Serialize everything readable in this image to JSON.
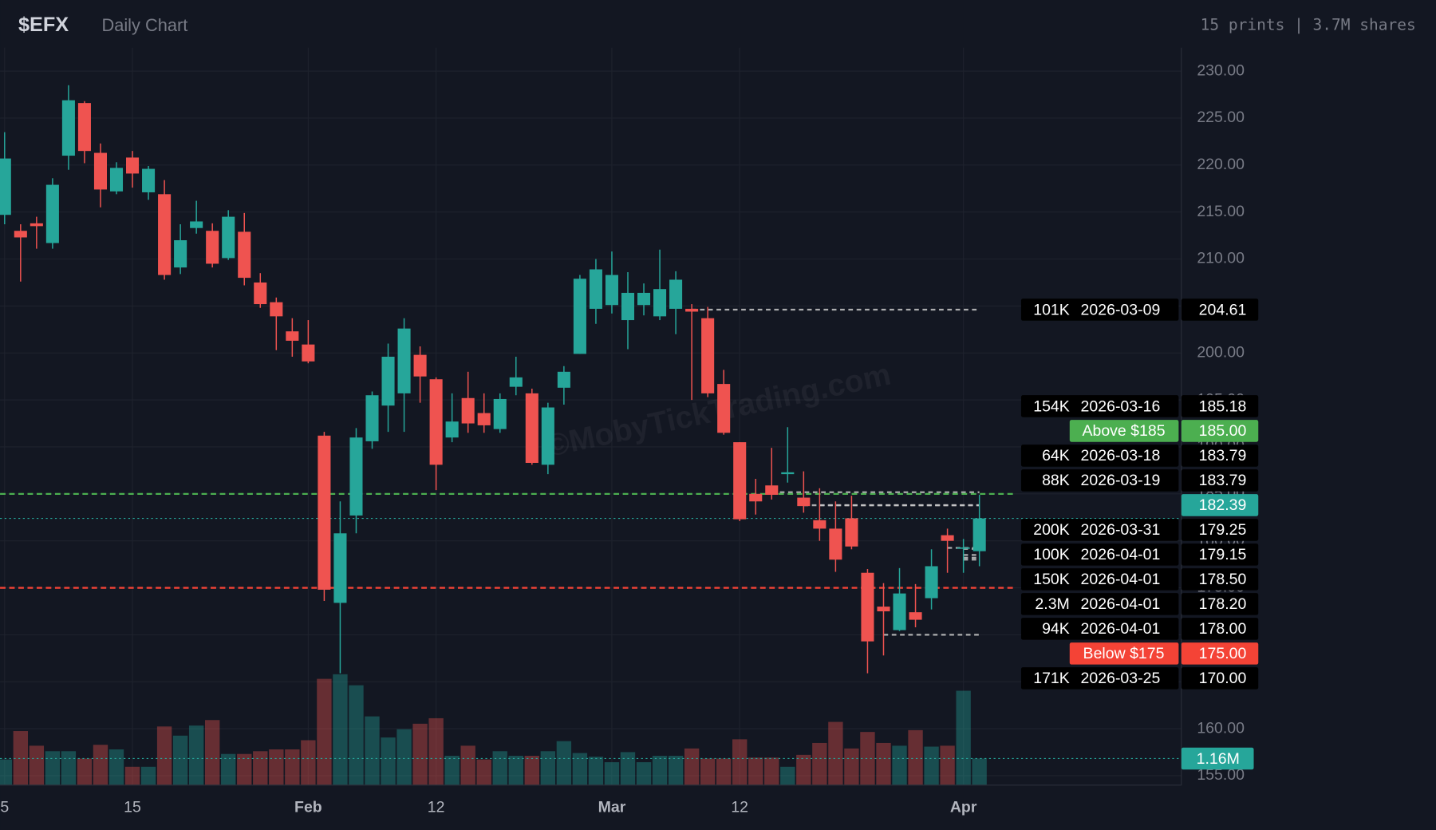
{
  "chart_data": {
    "type": "candlestick",
    "title": "$EFX",
    "subtitle": "Daily Chart",
    "summary": "15 prints | 3.7M shares",
    "watermark": "©MobyTickTrading.com",
    "x": [
      "2026-01-05",
      "2026-01-06",
      "2026-01-07",
      "2026-01-08",
      "2026-01-09",
      "2026-01-12",
      "2026-01-13",
      "2026-01-14",
      "2026-01-15",
      "2026-01-16",
      "2026-01-20",
      "2026-01-21",
      "2026-01-22",
      "2026-01-23",
      "2026-01-26",
      "2026-01-27",
      "2026-01-28",
      "2026-01-29",
      "2026-01-30",
      "2026-02-02",
      "2026-02-03",
      "2026-02-04",
      "2026-02-05",
      "2026-02-06",
      "2026-02-09",
      "2026-02-10",
      "2026-02-11",
      "2026-02-12",
      "2026-02-13",
      "2026-02-17",
      "2026-02-18",
      "2026-02-19",
      "2026-02-20",
      "2026-02-23",
      "2026-02-24",
      "2026-02-25",
      "2026-02-26",
      "2026-02-27",
      "2026-03-02",
      "2026-03-03",
      "2026-03-04",
      "2026-03-05",
      "2026-03-06",
      "2026-03-09",
      "2026-03-10",
      "2026-03-11",
      "2026-03-12",
      "2026-03-13",
      "2026-03-16",
      "2026-03-17",
      "2026-03-18",
      "2026-03-19",
      "2026-03-20",
      "2026-03-23",
      "2026-03-24",
      "2026-03-25",
      "2026-03-26",
      "2026-03-27",
      "2026-03-30",
      "2026-03-31",
      "2026-04-01",
      "2026-04-02"
    ],
    "open": [
      214.7,
      213.0,
      213.8,
      211.7,
      221.0,
      226.6,
      221.3,
      217.2,
      220.8,
      217.1,
      216.9,
      209.1,
      213.3,
      213.0,
      210.1,
      212.9,
      207.5,
      205.4,
      202.3,
      200.9,
      191.2,
      173.4,
      182.7,
      190.6,
      194.4,
      195.7,
      199.8,
      197.2,
      191.0,
      195.2,
      193.6,
      191.9,
      196.4,
      195.7,
      188.1,
      196.3,
      199.9,
      204.7,
      205.1,
      203.5,
      205.1,
      203.9,
      204.7,
      204.7,
      203.7,
      196.7,
      190.5,
      185.0,
      185.9,
      187.1,
      184.6,
      182.2,
      181.3,
      182.4,
      176.6,
      173.0,
      170.5,
      172.4,
      173.9,
      180.6,
      179.2,
      178.9
    ],
    "high": [
      223.5,
      213.7,
      214.5,
      218.6,
      228.5,
      226.8,
      222.3,
      220.3,
      221.5,
      219.9,
      218.4,
      213.7,
      216.2,
      213.8,
      215.2,
      214.9,
      208.5,
      205.9,
      203.7,
      203.5,
      191.6,
      184.2,
      192.0,
      195.9,
      201.0,
      203.7,
      200.7,
      197.4,
      195.7,
      198.0,
      195.7,
      195.7,
      199.6,
      196.2,
      194.7,
      198.6,
      208.3,
      210.0,
      210.8,
      208.6,
      207.4,
      211.0,
      208.7,
      205.2,
      204.9,
      198.2,
      190.5,
      186.6,
      189.9,
      192.1,
      187.4,
      185.6,
      184.2,
      184.8,
      177.0,
      175.5,
      177.1,
      175.4,
      179.1,
      181.3,
      180.2,
      184.9
    ],
    "low": [
      213.7,
      207.6,
      211.1,
      211.1,
      219.5,
      220.2,
      215.5,
      216.9,
      217.6,
      216.3,
      207.8,
      208.4,
      212.7,
      209.1,
      209.9,
      207.2,
      204.8,
      200.3,
      199.6,
      198.9,
      173.6,
      165.9,
      180.8,
      189.8,
      191.6,
      191.6,
      194.7,
      185.4,
      190.5,
      191.5,
      191.5,
      191.5,
      195.5,
      188.1,
      187.1,
      194.5,
      199.9,
      203.1,
      204.2,
      200.4,
      204.0,
      203.5,
      202.0,
      195.0,
      195.3,
      191.3,
      182.1,
      182.8,
      184.4,
      186.2,
      183.0,
      180.0,
      176.7,
      179.1,
      165.9,
      167.8,
      170.4,
      170.8,
      172.7,
      176.6,
      176.6,
      177.3
    ],
    "close": [
      220.7,
      212.3,
      213.5,
      217.9,
      226.9,
      221.5,
      217.4,
      219.7,
      219.1,
      219.6,
      208.3,
      212.0,
      214.0,
      209.5,
      214.5,
      208.0,
      205.2,
      203.9,
      201.3,
      199.1,
      174.8,
      180.8,
      191.0,
      195.5,
      199.6,
      202.6,
      197.5,
      188.1,
      192.7,
      192.5,
      192.3,
      195.1,
      197.4,
      188.3,
      194.2,
      198.0,
      207.9,
      208.9,
      208.3,
      206.4,
      206.4,
      206.8,
      207.8,
      204.4,
      195.7,
      191.5,
      182.3,
      184.2,
      184.9,
      187.3,
      183.7,
      181.3,
      178.0,
      179.4,
      169.3,
      172.5,
      174.4,
      171.6,
      177.3,
      180.0,
      179.3,
      182.39
    ],
    "volume": [
      1.12,
      2.36,
      1.72,
      1.48,
      1.48,
      1.16,
      1.76,
      1.56,
      0.8,
      0.8,
      2.56,
      2.16,
      2.6,
      2.84,
      1.36,
      1.36,
      1.48,
      1.56,
      1.56,
      1.96,
      4.64,
      4.84,
      4.36,
      3.0,
      2.08,
      2.44,
      2.68,
      2.92,
      1.28,
      1.72,
      1.12,
      1.48,
      1.28,
      1.28,
      1.48,
      1.92,
      1.4,
      1.24,
      1.0,
      1.44,
      1.0,
      1.28,
      1.28,
      1.6,
      1.16,
      1.16,
      2.0,
      1.2,
      1.2,
      0.8,
      1.32,
      1.84,
      2.76,
      1.6,
      2.32,
      1.84,
      1.72,
      2.4,
      1.68,
      1.72,
      4.12,
      1.16
    ],
    "volume_label": "1.16M",
    "up_color": "#26a69a",
    "down_color": "#ef5350",
    "ylim": [
      154,
      232.5
    ],
    "yticks": [
      {
        "value": 155,
        "label": "155.00"
      },
      {
        "value": 160,
        "label": "160.00"
      },
      {
        "value": 165,
        "label": "165.00"
      },
      {
        "value": 170,
        "label": "170.00"
      },
      {
        "value": 175,
        "label": "175.00"
      },
      {
        "value": 180,
        "label": "180.00"
      },
      {
        "value": 185,
        "label": "185.00"
      },
      {
        "value": 190,
        "label": "190.00"
      },
      {
        "value": 195,
        "label": "195.00"
      },
      {
        "value": 200,
        "label": "200.00"
      },
      {
        "value": 205,
        "label": "205.00"
      },
      {
        "value": 210,
        "label": "210.00"
      },
      {
        "value": 215,
        "label": "215.00"
      },
      {
        "value": 220,
        "label": "220.00"
      },
      {
        "value": 225,
        "label": "225.00"
      },
      {
        "value": 230,
        "label": "230.00"
      }
    ],
    "xticks": [
      {
        "value": "2026-01-05",
        "label": "5"
      },
      {
        "value": "2026-01-15",
        "label": "15"
      },
      {
        "value": "2026-02-02",
        "label": "Feb"
      },
      {
        "value": "2026-02-12",
        "label": "12"
      },
      {
        "value": "2026-03-02",
        "label": "Mar"
      },
      {
        "value": "2026-03-12",
        "label": "12"
      },
      {
        "value": "2026-04-01",
        "label": "Apr"
      }
    ],
    "grid": true,
    "last_price": 182.39,
    "alerts": [
      {
        "label": "Above $185",
        "price": 185,
        "price_label": "185.00",
        "color": "#4caf50"
      },
      {
        "label": "Below $175",
        "price": 175,
        "price_label": "175.00",
        "color": "#f44336"
      }
    ],
    "prints": [
      {
        "size": "101K",
        "date": "2026-03-09",
        "price": 204.61,
        "price_label": "204.61"
      },
      {
        "size": "154K",
        "date": "2026-03-16",
        "price": 185.18,
        "price_label": "185.18"
      },
      {
        "size": "64K",
        "date": "2026-03-18",
        "price": 183.79,
        "price_label": "183.79"
      },
      {
        "size": "88K",
        "date": "2026-03-19",
        "price": 183.79,
        "price_label": "183.79"
      },
      {
        "size": "200K",
        "date": "2026-03-31",
        "price": 179.25,
        "price_label": "179.25"
      },
      {
        "size": "100K",
        "date": "2026-04-01",
        "price": 179.15,
        "price_label": "179.15"
      },
      {
        "size": "150K",
        "date": "2026-04-01",
        "price": 178.5,
        "price_label": "178.50"
      },
      {
        "size": "2.3M",
        "date": "2026-04-01",
        "price": 178.2,
        "price_label": "178.20"
      },
      {
        "size": "94K",
        "date": "2026-04-01",
        "price": 178,
        "price_label": "178.00"
      },
      {
        "size": "171K",
        "date": "2026-03-25",
        "price": 170,
        "price_label": "170.00"
      }
    ]
  }
}
